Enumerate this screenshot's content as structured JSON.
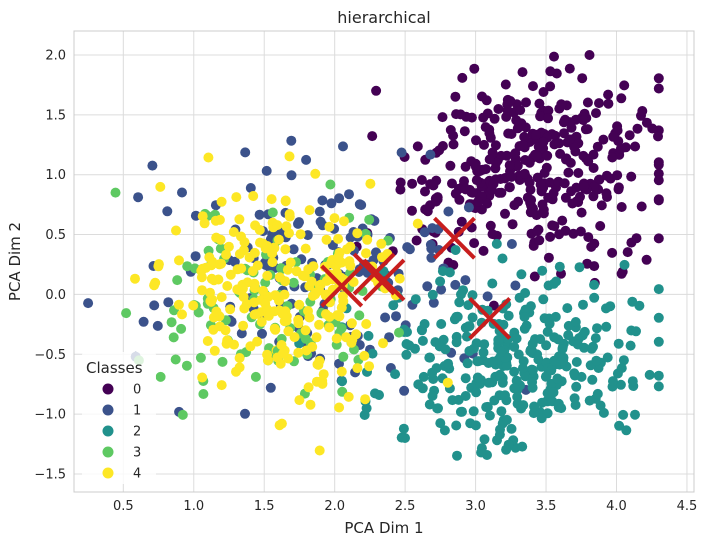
{
  "chart_data": {
    "type": "scatter",
    "title": "hierarchical",
    "xlabel": "PCA Dim 1",
    "ylabel": "PCA Dim 2",
    "xlim": [
      0.15,
      4.55
    ],
    "ylim": [
      -1.65,
      2.2
    ],
    "xticks": [
      0.5,
      1.0,
      1.5,
      2.0,
      2.5,
      3.0,
      3.5,
      4.0,
      4.5
    ],
    "xtick_labels": [
      "0.5",
      "1.0",
      "1.5",
      "2.0",
      "2.5",
      "3.0",
      "3.5",
      "4.0",
      "4.5"
    ],
    "yticks": [
      -1.5,
      -1.0,
      -0.5,
      0.0,
      0.5,
      1.0,
      1.5,
      2.0
    ],
    "ytick_labels": [
      "−1.5",
      "−1.0",
      "−0.5",
      "0.0",
      "0.5",
      "1.0",
      "1.5",
      "2.0"
    ],
    "grid": true,
    "legend": {
      "title": "Classes",
      "placement": "lower-left"
    },
    "series": [
      {
        "name": "0",
        "color": "#440154",
        "center": [
          3.45,
          1.05
        ],
        "spread": [
          0.48,
          0.38
        ],
        "count": 360,
        "seed": 11
      },
      {
        "name": "1",
        "color": "#3b528b",
        "center": [
          1.95,
          0.15
        ],
        "spread": [
          0.55,
          0.45
        ],
        "count": 170,
        "seed": 23
      },
      {
        "name": "2",
        "color": "#21918c",
        "center": [
          3.3,
          -0.55
        ],
        "spread": [
          0.5,
          0.35
        ],
        "count": 330,
        "seed": 37
      },
      {
        "name": "3",
        "color": "#5ec962",
        "center": [
          1.5,
          -0.05
        ],
        "spread": [
          0.42,
          0.42
        ],
        "count": 110,
        "seed": 41
      },
      {
        "name": "4",
        "color": "#fde725",
        "center": [
          1.65,
          0.05
        ],
        "spread": [
          0.42,
          0.45
        ],
        "count": 260,
        "seed": 53
      }
    ],
    "centroids": {
      "color": "#c81e1e",
      "points": [
        {
          "x": 2.85,
          "y": 0.47
        },
        {
          "x": 3.1,
          "y": -0.2
        },
        {
          "x": 2.05,
          "y": 0.07
        },
        {
          "x": 2.28,
          "y": 0.17
        },
        {
          "x": 2.35,
          "y": 0.12
        }
      ]
    }
  }
}
